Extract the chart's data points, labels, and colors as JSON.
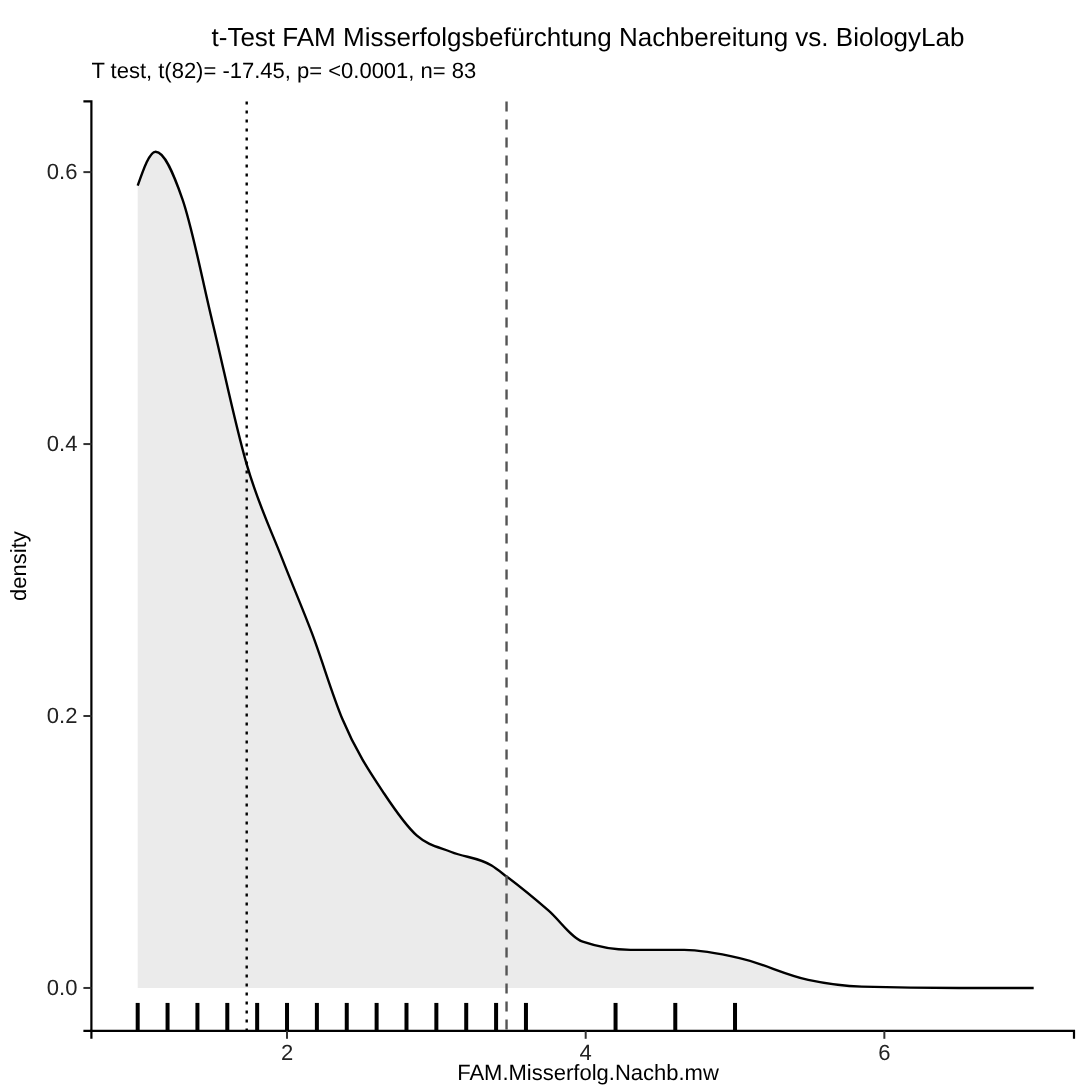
{
  "chart_data": {
    "type": "area",
    "title": "t-Test FAM Misserfolgsbefürchtung Nachbereitung vs. BiologyLab",
    "subtitle": "T test, t(82)= -17.45, p= <0.0001, n= 83",
    "xlabel": "FAM.Misserfolg.Nachb.mw",
    "ylabel": "density",
    "series": [
      {
        "color": "#000000",
        "x": [
          1,
          1.12,
          1.3,
          1.5,
          1.73,
          1.97,
          2.17,
          2.37,
          2.65,
          2.87,
          3.1,
          3.37,
          3.47,
          3.75,
          3.98,
          4.3,
          4.66,
          5.03,
          5.49,
          5.85,
          6.5,
          7
        ],
        "values": [
          0.59,
          0.615,
          0.58,
          0.49,
          0.385,
          0.315,
          0.26,
          0.198,
          0.143,
          0.112,
          0.1,
          0.09,
          0.082,
          0.057,
          0.034,
          0.028,
          0.028,
          0.022,
          0.006,
          0.001,
          0,
          0
        ]
      },
      {
        "type": "bar",
        "color": "#000000",
        "x": [
          1,
          1.2,
          1.4,
          1.6,
          1.8,
          2,
          2.2,
          2.4,
          2.6,
          2.8,
          3,
          3.2,
          3.4,
          3.6,
          4.2,
          4.6,
          5
        ],
        "base": [
          -0.031,
          -0.031,
          -0.031,
          -0.031,
          -0.031,
          -0.031,
          -0.031,
          -0.031,
          -0.031,
          -0.031,
          -0.031,
          -0.031,
          -0.031,
          -0.031,
          -0.031,
          -0.031,
          -0.031
        ],
        "values": [
          0.02,
          0.02,
          0.02,
          0.02,
          0.02,
          0.02,
          0.02,
          0.02,
          0.02,
          0.02,
          0.02,
          0.02,
          0.02,
          0.02,
          0.02,
          0.02,
          0.02
        ]
      }
    ],
    "xlim": [
      0.69,
      7.27
    ],
    "xticks": [
      2,
      4,
      6
    ],
    "ylim": [
      -0.0315,
      0.652
    ],
    "yticks": [
      {
        "value": 0,
        "label": "0.0"
      },
      0.2,
      0.4,
      0.6
    ],
    "ref_lines": [
      {
        "axis": "x",
        "value": 1.73,
        "line_style": "dotted",
        "color": "#000000"
      },
      {
        "axis": "x",
        "value": 3.47,
        "line_style": "dashed",
        "color": "#555555"
      }
    ],
    "grid": false
  }
}
